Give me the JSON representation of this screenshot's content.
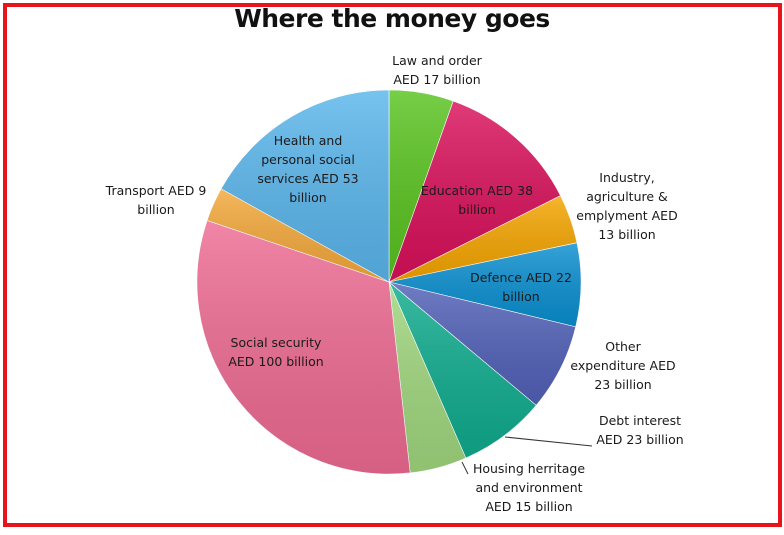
{
  "chart_data": {
    "type": "pie",
    "title": "Where the money goes",
    "unit": "AED billion",
    "slices": [
      {
        "name": "Law and order",
        "value": 17,
        "color": "#59c31f",
        "label_lines": [
          "Law and order",
          "AED 17 billion"
        ]
      },
      {
        "name": "Education",
        "value": 38,
        "color": "#d9105a",
        "label_lines": [
          "Education AED 38",
          "billion"
        ]
      },
      {
        "name": "Industry, agriculture & emplyment",
        "value": 13,
        "color": "#f5a500",
        "label_lines": [
          "Industry,",
          "agriculture &",
          "emplyment AED",
          "13 billion"
        ]
      },
      {
        "name": "Defence",
        "value": 22,
        "color": "#0a8fd0",
        "label_lines": [
          "Defence AED 22",
          "billion"
        ]
      },
      {
        "name": "Other expenditure",
        "value": 23,
        "color": "#5161b8",
        "label_lines": [
          "Other",
          "expenditure AED",
          "23 billion"
        ]
      },
      {
        "name": "Debt interest",
        "value": 23,
        "color": "#0fac8e",
        "label_lines": [
          "Debt interest",
          "AED 23 billion"
        ]
      },
      {
        "name": "Housing herritage and environment",
        "value": 15,
        "color": "#a0d77e",
        "label_lines": [
          "Housing herritage",
          "and environment",
          "AED 15 billion"
        ]
      },
      {
        "name": "Social security",
        "value": 100,
        "color": "#ee6b93",
        "label_lines": [
          "Social security",
          "AED 100 billion"
        ]
      },
      {
        "name": "Transport",
        "value": 9,
        "color": "#f4a93b",
        "label_lines": [
          "Transport AED 9",
          "billion"
        ]
      },
      {
        "name": "Health and personal social services",
        "value": 53,
        "color": "#5ab6ec",
        "label_lines": [
          "Health and",
          "personal social",
          "services AED 53",
          "billion"
        ]
      }
    ]
  }
}
